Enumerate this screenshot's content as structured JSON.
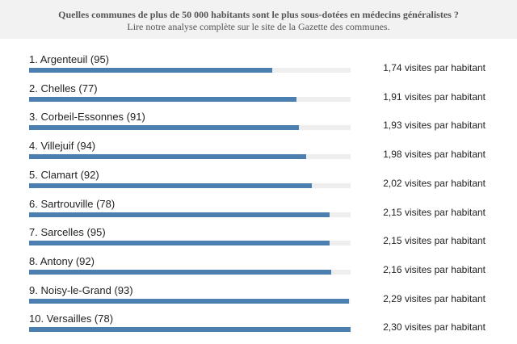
{
  "header": {
    "title": "Quelles communes de plus de 50 000 habitants sont le plus sous-dotées en médecins généralistes ?",
    "subtitle": "Lire notre analyse complète sur le site de la Gazette des communes."
  },
  "chart_data": {
    "type": "bar",
    "orientation": "horizontal",
    "title": "Quelles communes de plus de 50 000 habitants sont le plus sous-dotées en médecins généralistes ?",
    "categories": [
      "1. Argenteuil (95)",
      "2. Chelles (77)",
      "3. Corbeil-Essonnes (91)",
      "4. Villejuif (94)",
      "5. Clamart (92)",
      "6. Sartrouville (78)",
      "7. Sarcelles (95)",
      "8. Antony (92)",
      "9. Noisy-le-Grand (93)",
      "10. Versailles (78)"
    ],
    "values": [
      1.74,
      1.91,
      1.93,
      1.98,
      2.02,
      2.15,
      2.15,
      2.16,
      2.29,
      2.3
    ],
    "value_labels": [
      "1,74 visites par habitant",
      "1,91 visites par habitant",
      "1,93 visites par habitant",
      "1,98 visites par habitant",
      "2,02 visites par habitant",
      "2,15 visites par habitant",
      "2,15 visites par habitant",
      "2,16 visites par habitant",
      "2,29 visites par habitant",
      "2,30 visites par habitant"
    ],
    "xlim": [
      0,
      2.3
    ],
    "unit": "visites par habitant",
    "bar_color": "#4a7faf",
    "track_color": "#eeeeee"
  }
}
